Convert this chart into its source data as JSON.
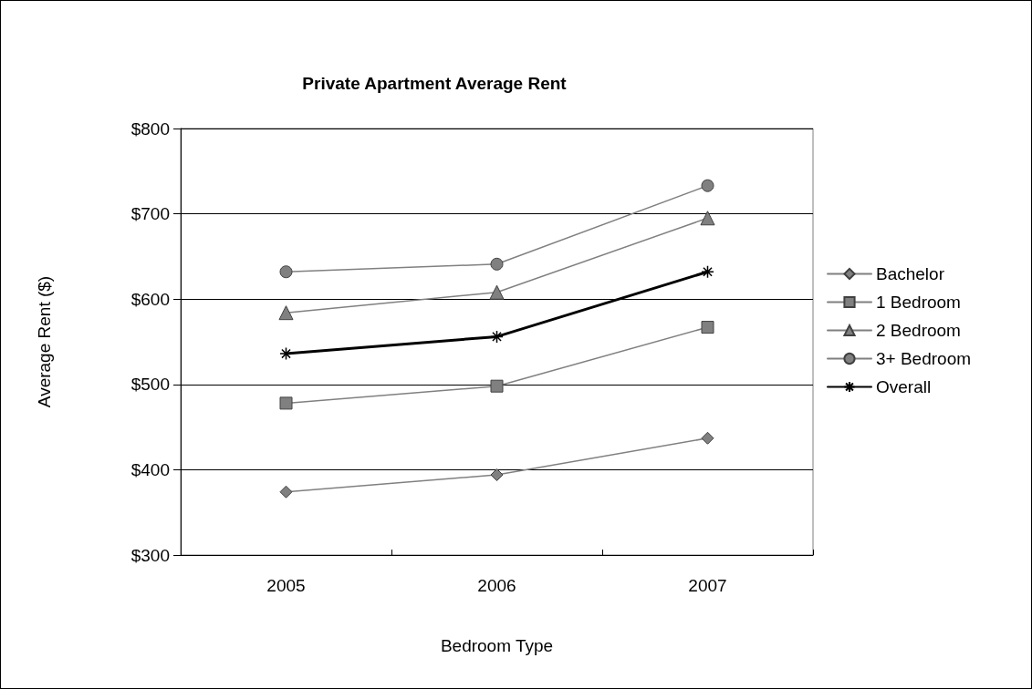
{
  "chart_data": {
    "type": "line",
    "title": "Private Apartment Average Rent",
    "xlabel": "Bedroom Type",
    "ylabel": "Average Rent ($)",
    "categories": [
      "2005",
      "2006",
      "2007"
    ],
    "series": [
      {
        "name": "Bachelor",
        "color": "#808080",
        "marker": "diamond",
        "values": [
          374,
          394,
          437
        ]
      },
      {
        "name": "1 Bedroom",
        "color": "#808080",
        "marker": "square",
        "values": [
          478,
          498,
          567
        ]
      },
      {
        "name": "2 Bedroom",
        "color": "#808080",
        "marker": "triangle",
        "values": [
          584,
          608,
          695
        ]
      },
      {
        "name": "3+ Bedroom",
        "color": "#808080",
        "marker": "circle",
        "values": [
          632,
          641,
          733
        ]
      },
      {
        "name": "Overall",
        "color": "#000000",
        "marker": "cross",
        "values": [
          536,
          556,
          632
        ]
      }
    ],
    "ylim": [
      300,
      800
    ],
    "yticks": [
      {
        "value": 300,
        "label": "$300"
      },
      {
        "value": 400,
        "label": "$400"
      },
      {
        "value": 500,
        "label": "$500"
      },
      {
        "value": 600,
        "label": "$600"
      },
      {
        "value": 700,
        "label": "$700"
      },
      {
        "value": 800,
        "label": "$800"
      }
    ],
    "grid": "y",
    "legend": "right",
    "line_style": "solid"
  }
}
